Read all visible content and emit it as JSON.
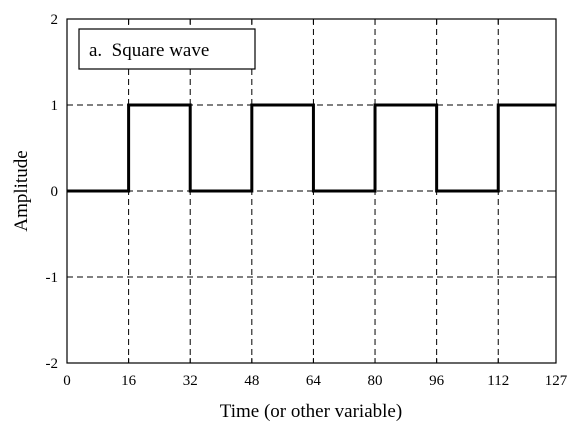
{
  "chart_data": {
    "type": "line",
    "title": "",
    "legend": "a.  Square wave",
    "legend_placement": "top-left",
    "xlabel": "Time (or other variable)",
    "ylabel": "Amplitude",
    "xlim": [
      0,
      127
    ],
    "ylim": [
      -2,
      2
    ],
    "x_ticks": [
      0,
      16,
      32,
      48,
      64,
      80,
      96,
      112,
      127
    ],
    "y_ticks": [
      -2,
      -1,
      0,
      1,
      2
    ],
    "grid": true,
    "series": [
      {
        "x": [
          0,
          16,
          16,
          32,
          32,
          48,
          48,
          64,
          64,
          80,
          80,
          96,
          96,
          112,
          112,
          127
        ],
        "y": [
          0,
          0,
          1,
          1,
          0,
          0,
          1,
          1,
          0,
          0,
          1,
          1,
          0,
          0,
          1,
          1
        ]
      }
    ]
  }
}
